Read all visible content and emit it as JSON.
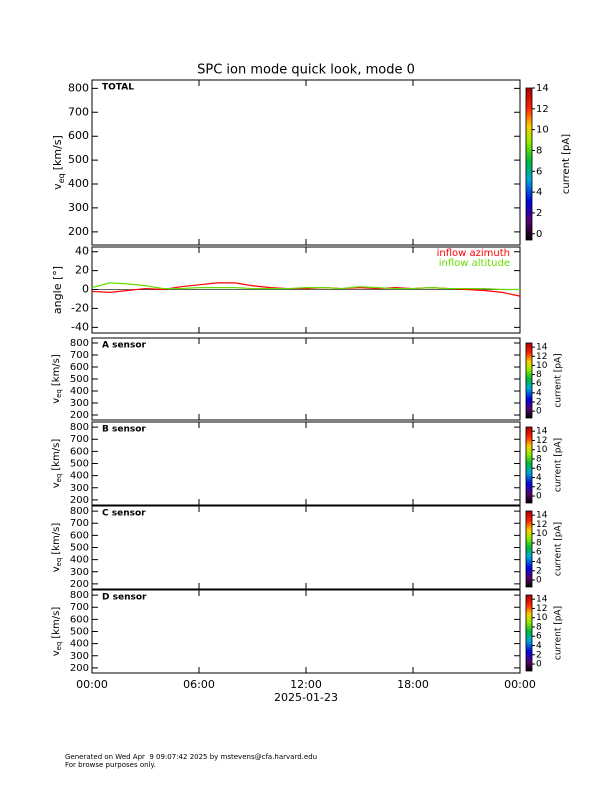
{
  "title": "SPC ion mode quick look, mode 0",
  "footer": [
    "Generated on Wed Apr  9 09:07:42 2025 by mstevens@cfa.harvard.edu",
    "For browse purposes only."
  ],
  "chart_data": [
    {
      "type": "spectrogram",
      "label": "TOTAL",
      "ylabel_v": "v",
      "ylabel_sub": "eq",
      "ylabel_unit": "[km/s]",
      "ylim": [
        145,
        835
      ],
      "yticks": [
        200,
        300,
        400,
        500,
        600,
        700,
        800
      ],
      "xlim": [
        0,
        24
      ],
      "xticks": [
        0,
        6,
        12,
        18,
        24
      ],
      "colorbar": {
        "label": "current [pA]",
        "lim": [
          -0.6,
          14
        ],
        "ticks": [
          0,
          2,
          4,
          6,
          8,
          10,
          12,
          14
        ]
      }
    },
    {
      "type": "line",
      "ylabel": "angle [°]",
      "ylim": [
        -46,
        45
      ],
      "yticks": [
        -40,
        -20,
        0,
        20,
        40
      ],
      "xlim": [
        0,
        24
      ],
      "xticks": [
        0,
        6,
        12,
        18,
        24
      ],
      "x": [
        0,
        1,
        2,
        3,
        4,
        5,
        6,
        7,
        8,
        9,
        10,
        11,
        12,
        13,
        14,
        15,
        16,
        17,
        18,
        19,
        20,
        21,
        22,
        23,
        24
      ],
      "series": [
        {
          "name": "inflow azimuth",
          "color": "#ff0000",
          "values": [
            -2,
            -3,
            -1,
            1,
            0,
            3,
            5,
            7,
            7,
            4,
            2,
            1,
            1,
            2,
            1,
            2,
            1,
            2,
            1,
            2,
            1,
            0,
            -1,
            -3,
            -7
          ]
        },
        {
          "name": "inflow altitude",
          "color": "#66dd00",
          "values": [
            2,
            7,
            6,
            4,
            1,
            1,
            2,
            2,
            2,
            1,
            1,
            1,
            2,
            2,
            1,
            3,
            2,
            1,
            1,
            2,
            1,
            1,
            1,
            0,
            0
          ]
        }
      ]
    },
    {
      "type": "spectrogram",
      "label": "A sensor",
      "ylabel_v": "v",
      "ylabel_sub": "eq",
      "ylabel_unit": "[km/s]",
      "ylim": [
        158,
        842
      ],
      "yticks": [
        200,
        300,
        400,
        500,
        600,
        700,
        800
      ],
      "xlim": [
        0,
        24
      ],
      "xticks": [
        0,
        6,
        12,
        18,
        24
      ],
      "colorbar": {
        "label": "current [pA]",
        "lim": [
          -1.5,
          14.9
        ],
        "ticks": [
          0,
          2,
          4,
          6,
          8,
          10,
          12,
          14
        ]
      }
    },
    {
      "type": "spectrogram",
      "label": "B sensor",
      "ylabel_v": "v",
      "ylabel_sub": "eq",
      "ylabel_unit": "[km/s]",
      "ylim": [
        158,
        842
      ],
      "yticks": [
        200,
        300,
        400,
        500,
        600,
        700,
        800
      ],
      "xlim": [
        0,
        24
      ],
      "xticks": [
        0,
        6,
        12,
        18,
        24
      ],
      "colorbar": {
        "label": "current [pA]",
        "lim": [
          -1.5,
          14.9
        ],
        "ticks": [
          0,
          2,
          4,
          6,
          8,
          10,
          12,
          14
        ]
      }
    },
    {
      "type": "spectrogram",
      "label": "C sensor",
      "ylabel_v": "v",
      "ylabel_sub": "eq",
      "ylabel_unit": "[km/s]",
      "ylim": [
        158,
        842
      ],
      "yticks": [
        200,
        300,
        400,
        500,
        600,
        700,
        800
      ],
      "xlim": [
        0,
        24
      ],
      "xticks": [
        0,
        6,
        12,
        18,
        24
      ],
      "colorbar": {
        "label": "current [pA]",
        "lim": [
          -1.5,
          14.9
        ],
        "ticks": [
          0,
          2,
          4,
          6,
          8,
          10,
          12,
          14
        ]
      }
    },
    {
      "type": "spectrogram",
      "label": "D sensor",
      "ylabel_v": "v",
      "ylabel_sub": "eq",
      "ylabel_unit": "[km/s]",
      "ylim": [
        158,
        842
      ],
      "yticks": [
        200,
        300,
        400,
        500,
        600,
        700,
        800
      ],
      "xlim": [
        0,
        24
      ],
      "xticks": [
        {
          "value": 0,
          "label": "00:00"
        },
        {
          "value": 6,
          "label": "06:00"
        },
        {
          "value": 12,
          "label": "12:00"
        },
        {
          "value": 18,
          "label": "18:00"
        },
        {
          "value": 24,
          "label": "00:00"
        }
      ],
      "xlabel": "2025-01-23",
      "colorbar": {
        "label": "current [pA]",
        "lim": [
          -1.5,
          14.9
        ],
        "ticks": [
          0,
          2,
          4,
          6,
          8,
          10,
          12,
          14
        ]
      }
    }
  ]
}
